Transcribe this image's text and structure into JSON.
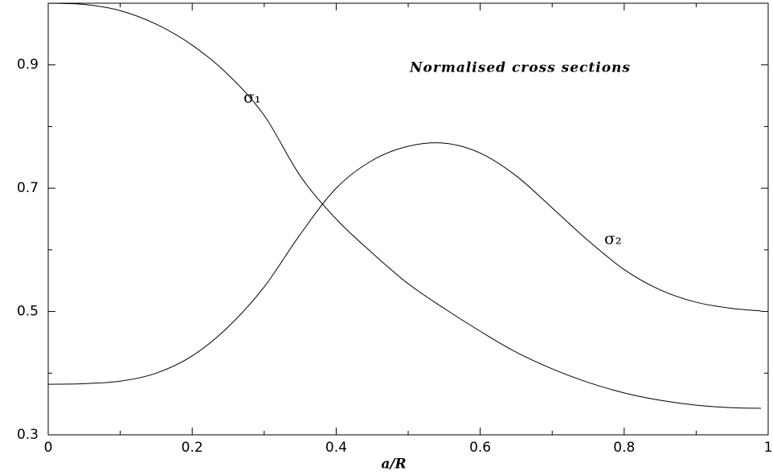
{
  "chart_data": {
    "type": "line",
    "annotation": "Normalised cross sections",
    "xlabel": "a/R",
    "x": [
      0,
      0.05,
      0.1,
      0.15,
      0.2,
      0.25,
      0.3,
      0.35,
      0.4,
      0.45,
      0.5,
      0.55,
      0.6,
      0.65,
      0.7,
      0.75,
      0.8,
      0.85,
      0.9,
      0.95,
      0.99
    ],
    "series": [
      {
        "name": "σ₁",
        "color": "#000000",
        "values": [
          1.0,
          0.998,
          0.988,
          0.966,
          0.932,
          0.884,
          0.818,
          0.72,
          0.65,
          0.595,
          0.545,
          0.505,
          0.468,
          0.434,
          0.407,
          0.385,
          0.368,
          0.356,
          0.348,
          0.344,
          0.343
        ]
      },
      {
        "name": "σ₂",
        "color": "#000000",
        "values": [
          0.382,
          0.383,
          0.387,
          0.4,
          0.428,
          0.475,
          0.54,
          0.625,
          0.7,
          0.745,
          0.768,
          0.773,
          0.757,
          0.72,
          0.668,
          0.615,
          0.568,
          0.535,
          0.515,
          0.505,
          0.501
        ]
      }
    ],
    "xlim": [
      0,
      1
    ],
    "xticks": [
      0,
      0.2,
      0.4,
      0.6,
      0.8,
      1
    ],
    "xminorticks": [
      0.1,
      0.3,
      0.5,
      0.7,
      0.9
    ],
    "ylim": [
      0.3,
      1.0
    ],
    "yticks": [
      0.3,
      0.5,
      0.7,
      0.9
    ],
    "yminorticks": [
      0.4,
      0.6,
      0.8
    ],
    "grid": false
  }
}
